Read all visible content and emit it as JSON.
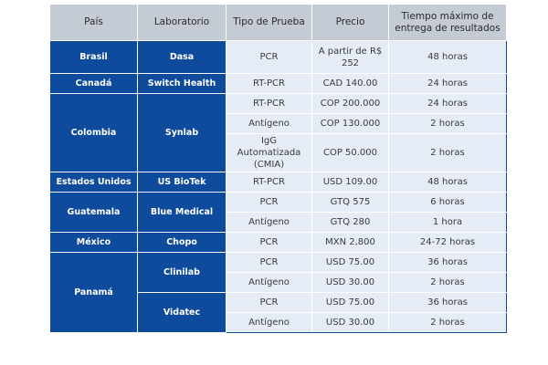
{
  "headers": [
    "País",
    "Laboratorio",
    "Tipo de Prueba",
    "Precio",
    "Tiempo máximo de entrega de resultados"
  ],
  "groups": [
    {
      "country": "Brasil",
      "labs": [
        {
          "name": "Dasa",
          "tests": [
            {
              "type": "PCR",
              "price": "A partir de R$ 252",
              "time": "48 horas"
            }
          ]
        }
      ]
    },
    {
      "country": "Canadá",
      "labs": [
        {
          "name": "Switch Health",
          "tests": [
            {
              "type": "RT-PCR",
              "price": "CAD 140.00",
              "time": "24 horas"
            }
          ]
        }
      ]
    },
    {
      "country": "Colombia",
      "labs": [
        {
          "name": "Synlab",
          "tests": [
            {
              "type": "RT-PCR",
              "price": "COP 200.000",
              "time": "24 horas"
            },
            {
              "type": "Antígeno",
              "price": "COP 130.000",
              "time": "2 horas"
            },
            {
              "type": "IgG Automatizada (CMIA)",
              "price": "COP 50.000",
              "time": "2 horas"
            }
          ]
        }
      ]
    },
    {
      "country": "Estados Unidos",
      "labs": [
        {
          "name": "US BioTek",
          "tests": [
            {
              "type": "RT-PCR",
              "price": "USD 109.00",
              "time": "48 horas"
            }
          ]
        }
      ]
    },
    {
      "country": "Guatemala",
      "labs": [
        {
          "name": "Blue Medical",
          "tests": [
            {
              "type": "PCR",
              "price": "GTQ 575",
              "time": "6 horas"
            },
            {
              "type": "Antígeno",
              "price": "GTQ 280",
              "time": "1 hora"
            }
          ]
        }
      ]
    },
    {
      "country": "México",
      "labs": [
        {
          "name": "Chopo",
          "tests": [
            {
              "type": "PCR",
              "price": "MXN 2,800",
              "time": "24-72 horas"
            }
          ]
        }
      ]
    },
    {
      "country": "Panamá",
      "labs": [
        {
          "name": "Clinilab",
          "tests": [
            {
              "type": "PCR",
              "price": "USD 75.00",
              "time": "36 horas"
            },
            {
              "type": "Antígeno",
              "price": "USD 30.00",
              "time": "2 horas"
            }
          ]
        },
        {
          "name": "Vidatec",
          "tests": [
            {
              "type": "PCR",
              "price": "USD 75.00",
              "time": "36 horas"
            },
            {
              "type": "Antígeno",
              "price": "USD 30.00",
              "time": "2 horas"
            }
          ]
        }
      ]
    }
  ]
}
